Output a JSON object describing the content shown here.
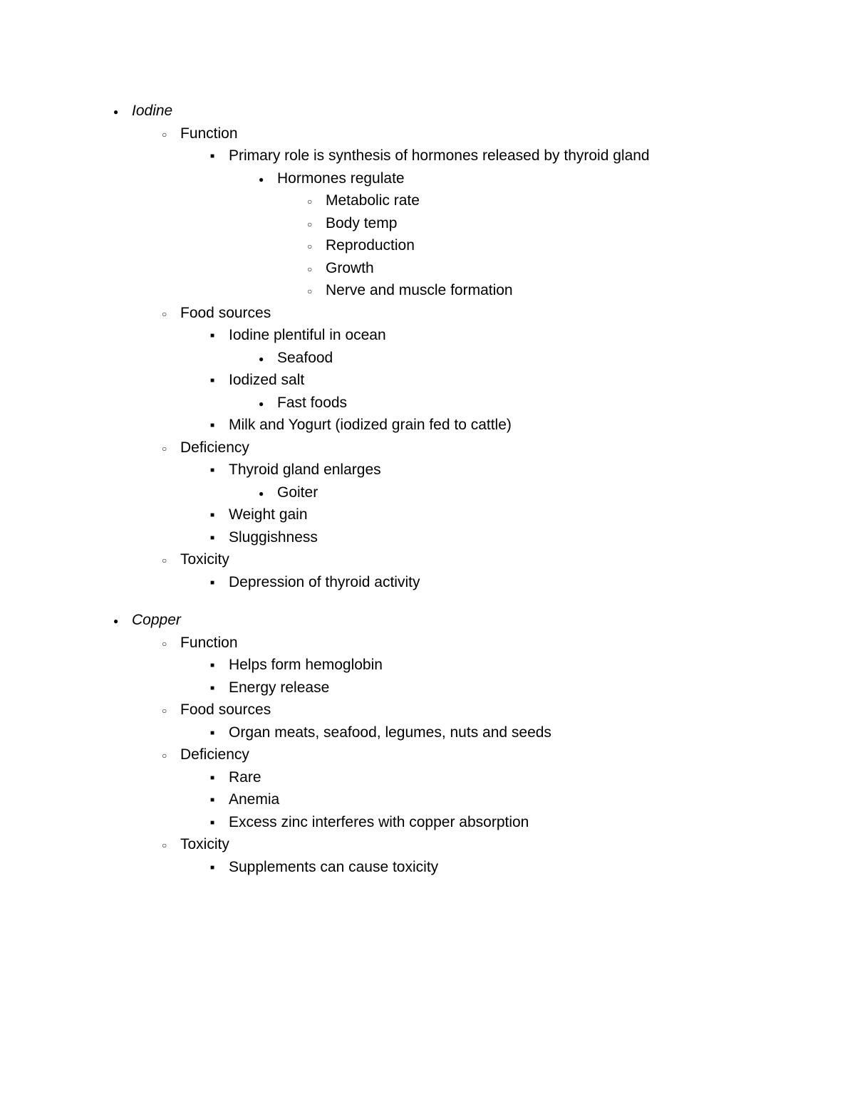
{
  "doc": {
    "iodine": {
      "title": "Iodine",
      "function": {
        "label": "Function",
        "primary": "Primary role is synthesis of hormones released by thyroid gland",
        "hormones_regulate": "Hormones regulate",
        "regulate_items": {
          "a": "Metabolic rate",
          "b": "Body temp",
          "c": "Reproduction",
          "d": "Growth",
          "e": "Nerve and muscle formation"
        }
      },
      "food_sources": {
        "label": "Food sources",
        "ocean": "Iodine plentiful in ocean",
        "seafood": "Seafood",
        "iodized_salt": "Iodized salt",
        "fast_foods": "Fast foods",
        "milk_yogurt": "Milk and Yogurt (iodized grain fed to cattle)"
      },
      "deficiency": {
        "label": "Deficiency",
        "thyroid_enlarges": "Thyroid gland enlarges",
        "goiter": "Goiter",
        "weight_gain": "Weight gain",
        "sluggishness": "Sluggishness"
      },
      "toxicity": {
        "label": "Toxicity",
        "depression": "Depression of thyroid activity"
      }
    },
    "copper": {
      "title": "Copper",
      "function": {
        "label": "Function",
        "hemoglobin": "Helps form hemoglobin",
        "energy": "Energy release"
      },
      "food_sources": {
        "label": "Food sources",
        "organ": "Organ meats, seafood, legumes, nuts and seeds"
      },
      "deficiency": {
        "label": "Deficiency",
        "rare": "Rare",
        "anemia": "Anemia",
        "zinc": "Excess zinc interferes with copper absorption"
      },
      "toxicity": {
        "label": "Toxicity",
        "supplements": "Supplements can cause toxicity"
      }
    }
  }
}
